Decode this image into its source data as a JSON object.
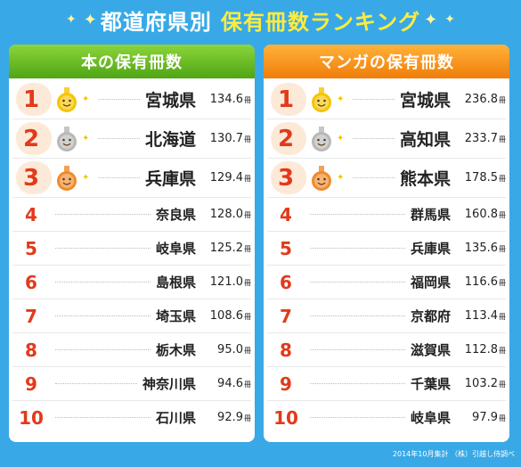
{
  "header": {
    "title_a": "都道府県別",
    "title_b": "保有冊数ランキング"
  },
  "left": {
    "title": "本の保有冊数",
    "unit": "冊",
    "rows": [
      {
        "rank": "1",
        "pref": "宮城県",
        "value": "134.6",
        "medal": "gold"
      },
      {
        "rank": "2",
        "pref": "北海道",
        "value": "130.7",
        "medal": "silver"
      },
      {
        "rank": "3",
        "pref": "兵庫県",
        "value": "129.4",
        "medal": "bronze"
      },
      {
        "rank": "4",
        "pref": "奈良県",
        "value": "128.0"
      },
      {
        "rank": "5",
        "pref": "岐阜県",
        "value": "125.2"
      },
      {
        "rank": "6",
        "pref": "島根県",
        "value": "121.0"
      },
      {
        "rank": "7",
        "pref": "埼玉県",
        "value": "108.6"
      },
      {
        "rank": "8",
        "pref": "栃木県",
        "value": "95.0"
      },
      {
        "rank": "9",
        "pref": "神奈川県",
        "value": "94.6"
      },
      {
        "rank": "10",
        "pref": "石川県",
        "value": "92.9"
      }
    ]
  },
  "right": {
    "title": "マンガの保有冊数",
    "unit": "冊",
    "rows": [
      {
        "rank": "1",
        "pref": "宮城県",
        "value": "236.8",
        "medal": "gold"
      },
      {
        "rank": "2",
        "pref": "高知県",
        "value": "233.7",
        "medal": "silver"
      },
      {
        "rank": "3",
        "pref": "熊本県",
        "value": "178.5",
        "medal": "bronze"
      },
      {
        "rank": "4",
        "pref": "群馬県",
        "value": "160.8"
      },
      {
        "rank": "5",
        "pref": "兵庫県",
        "value": "135.6"
      },
      {
        "rank": "6",
        "pref": "福岡県",
        "value": "116.6"
      },
      {
        "rank": "7",
        "pref": "京都府",
        "value": "113.4"
      },
      {
        "rank": "8",
        "pref": "滋賀県",
        "value": "112.8"
      },
      {
        "rank": "9",
        "pref": "千葉県",
        "value": "103.2"
      },
      {
        "rank": "10",
        "pref": "岐阜県",
        "value": "97.9"
      }
    ]
  },
  "colors": {
    "background": "#38a9e6",
    "rank_red": "#e23a1a",
    "left_header": "#5aad1c",
    "right_header": "#f3860f",
    "gold": "#f5c400",
    "silver": "#b8b8b8",
    "bronze": "#f08a2a"
  },
  "footer": "2014年10月集計 （株）引越し侍調べ"
}
